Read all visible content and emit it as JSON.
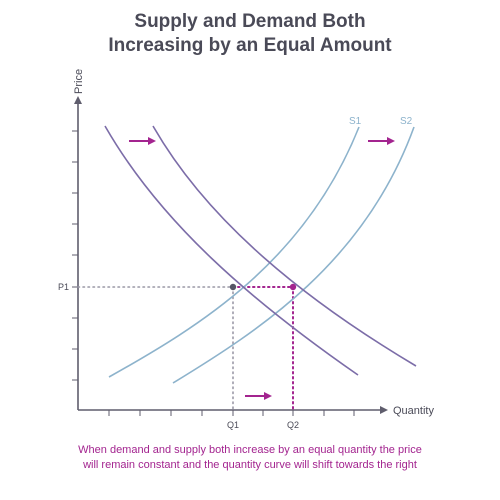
{
  "title_line1": "Supply and Demand Both",
  "title_line2": "Increasing by an Equal Amount",
  "caption_line1": "When demand and supply both increase by an equal quantity the price",
  "caption_line2": "will remain constant and the quantity curve will shift towards the right",
  "colors": {
    "supply": "#8db3cc",
    "demand": "#7c6da8",
    "accent": "#a3248f",
    "axis": "#5f5d6d",
    "eq1_point": "#555566"
  },
  "chart_data": {
    "type": "line",
    "xlabel": "Quantity",
    "ylabel": "Price",
    "x_tick_labels": [
      "Q1",
      "Q2"
    ],
    "y_tick_labels": [
      "P1"
    ],
    "series": [
      {
        "name": "S1",
        "kind": "supply"
      },
      {
        "name": "S2",
        "kind": "supply"
      },
      {
        "kind": "demand"
      },
      {
        "kind": "demand"
      }
    ],
    "equilibria": [
      {
        "price": "P1",
        "quantity": "Q1"
      },
      {
        "price": "P1",
        "quantity": "Q2"
      }
    ],
    "arrows": [
      "shift-right",
      "shift-right",
      "shift-right"
    ]
  }
}
